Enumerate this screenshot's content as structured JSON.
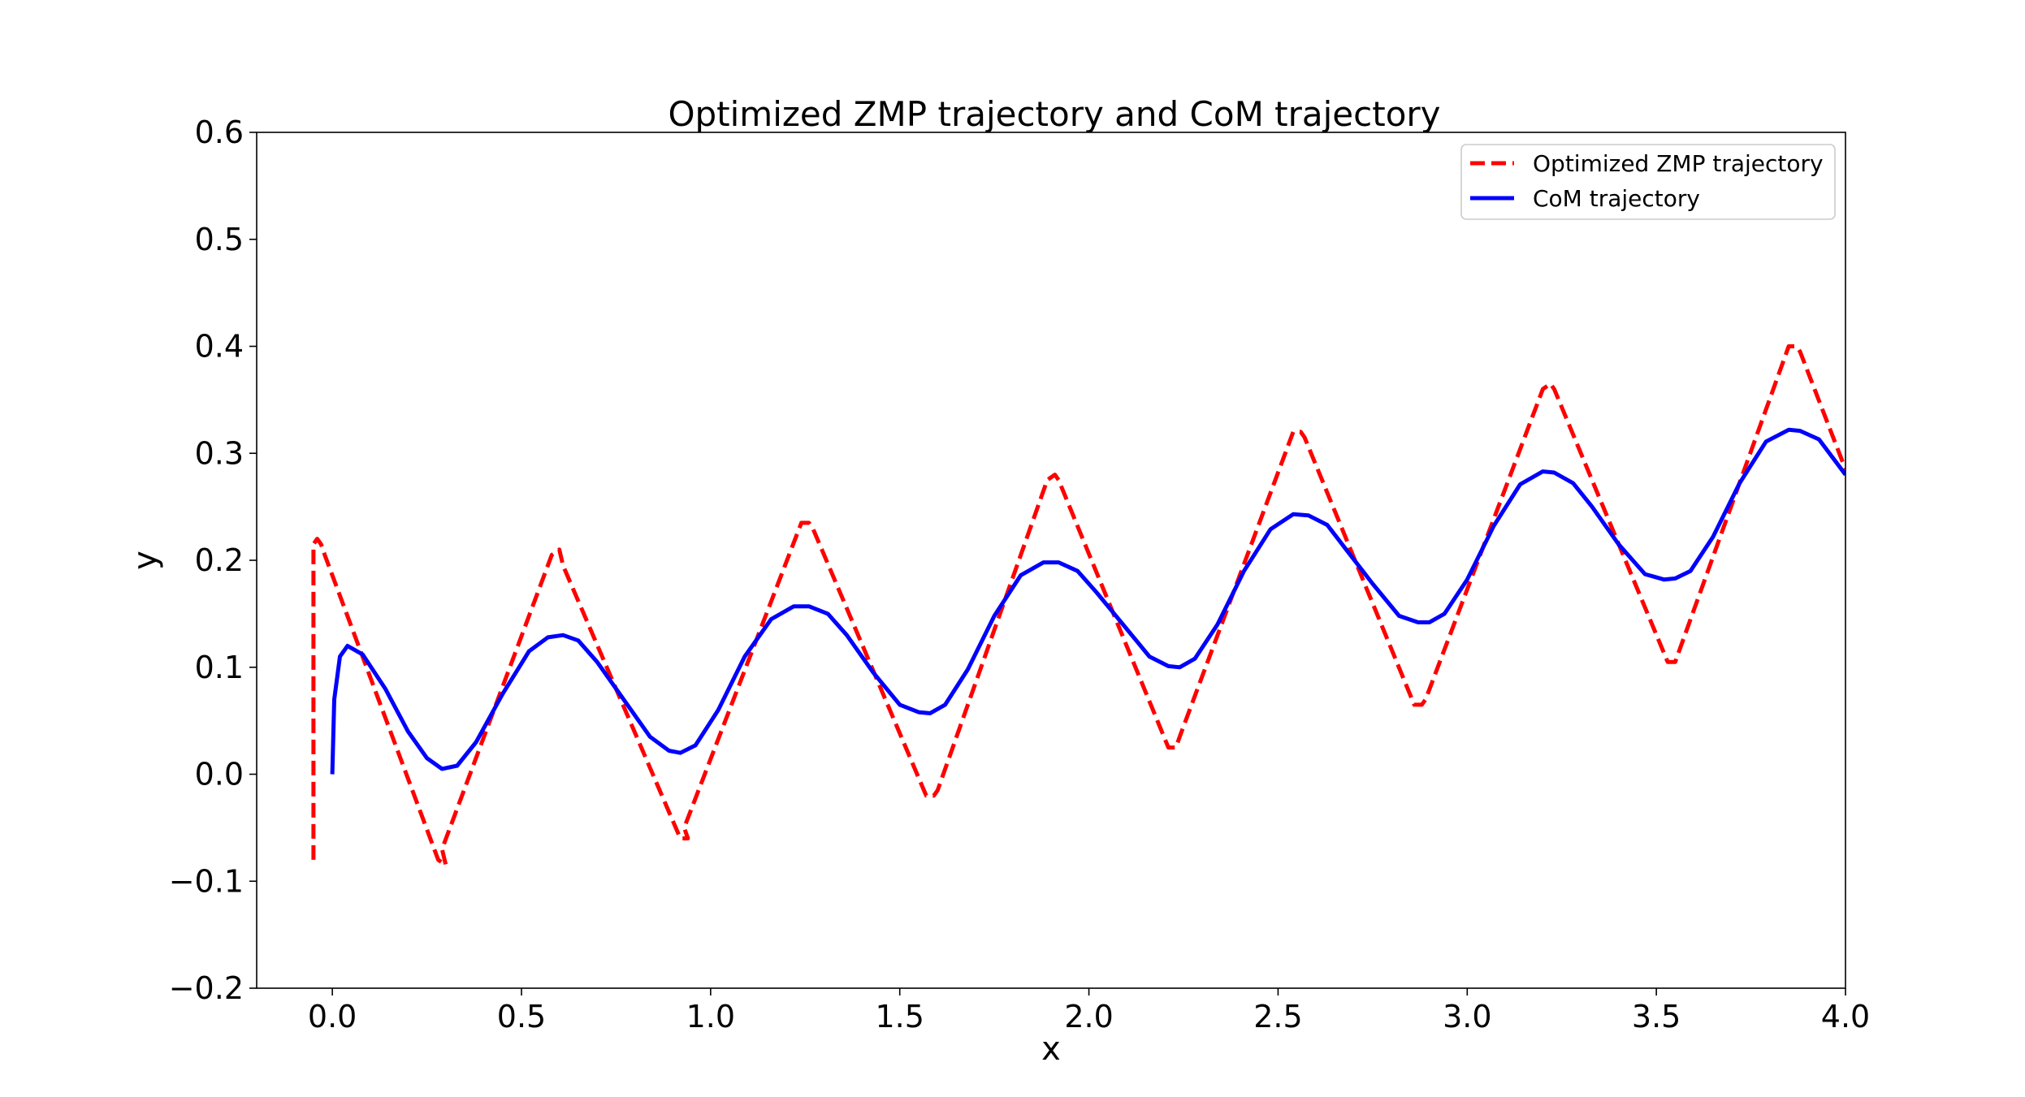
{
  "chart_data": {
    "type": "line",
    "title": "Optimized ZMP trajectory and CoM trajectory",
    "xlabel": "x",
    "ylabel": "y",
    "xlim": [
      -0.2,
      4.0
    ],
    "ylim": [
      -0.2,
      0.6
    ],
    "x_ticks": [
      0.0,
      0.5,
      1.0,
      1.5,
      2.0,
      2.5,
      3.0,
      3.5,
      4.0
    ],
    "y_ticks": [
      -0.2,
      -0.1,
      0.0,
      0.1,
      0.2,
      0.3,
      0.4,
      0.5,
      0.6
    ],
    "x_tick_labels": [
      "0.0",
      "0.5",
      "1.0",
      "1.5",
      "2.0",
      "2.5",
      "3.0",
      "3.5",
      "4.0"
    ],
    "y_tick_labels": [
      "−0.2",
      "−0.1",
      "0.0",
      "0.1",
      "0.2",
      "0.3",
      "0.4",
      "0.5",
      "0.6"
    ],
    "grid": false,
    "legend_position": "top-right",
    "series": [
      {
        "name": "Optimized ZMP trajectory",
        "color": "#ff0000",
        "style": "dashed",
        "x": [
          -0.05,
          -0.05,
          -0.04,
          -0.03,
          -0.02,
          0.28,
          0.3,
          0.29,
          0.58,
          0.6,
          0.61,
          0.92,
          0.94,
          0.93,
          1.24,
          1.26,
          1.27,
          1.57,
          1.59,
          1.6,
          1.89,
          1.91,
          1.92,
          2.21,
          2.23,
          2.24,
          2.54,
          2.56,
          2.57,
          2.86,
          2.88,
          2.89,
          3.2,
          3.22,
          3.23,
          3.53,
          3.55,
          3.56,
          3.85,
          3.87,
          3.88,
          4.0
        ],
        "y": [
          -0.08,
          0.215,
          0.22,
          0.215,
          0.205,
          -0.08,
          -0.085,
          -0.07,
          0.205,
          0.21,
          0.195,
          -0.06,
          -0.06,
          -0.05,
          0.235,
          0.235,
          0.23,
          -0.02,
          -0.02,
          -0.015,
          0.275,
          0.28,
          0.275,
          0.025,
          0.025,
          0.035,
          0.32,
          0.32,
          0.315,
          0.065,
          0.065,
          0.07,
          0.36,
          0.365,
          0.36,
          0.105,
          0.105,
          0.115,
          0.4,
          0.4,
          0.395,
          0.285
        ]
      },
      {
        "name": "CoM trajectory",
        "color": "#0000ff",
        "style": "solid",
        "x": [
          0.0,
          0.005,
          0.02,
          0.04,
          0.08,
          0.14,
          0.2,
          0.25,
          0.29,
          0.33,
          0.38,
          0.45,
          0.52,
          0.57,
          0.61,
          0.65,
          0.7,
          0.77,
          0.84,
          0.89,
          0.92,
          0.96,
          1.02,
          1.09,
          1.16,
          1.22,
          1.26,
          1.31,
          1.36,
          1.43,
          1.5,
          1.55,
          1.58,
          1.62,
          1.68,
          1.75,
          1.82,
          1.88,
          1.92,
          1.97,
          2.02,
          2.09,
          2.16,
          2.21,
          2.24,
          2.28,
          2.34,
          2.41,
          2.48,
          2.54,
          2.58,
          2.63,
          2.68,
          2.75,
          2.82,
          2.87,
          2.9,
          2.94,
          3.0,
          3.07,
          3.14,
          3.2,
          3.23,
          3.28,
          3.33,
          3.4,
          3.47,
          3.52,
          3.55,
          3.59,
          3.65,
          3.72,
          3.79,
          3.85,
          3.88,
          3.93,
          4.0
        ],
        "y": [
          0.0,
          0.07,
          0.11,
          0.12,
          0.112,
          0.08,
          0.04,
          0.015,
          0.005,
          0.008,
          0.03,
          0.075,
          0.115,
          0.128,
          0.13,
          0.125,
          0.105,
          0.07,
          0.035,
          0.022,
          0.02,
          0.027,
          0.06,
          0.11,
          0.145,
          0.157,
          0.157,
          0.15,
          0.13,
          0.095,
          0.065,
          0.058,
          0.057,
          0.065,
          0.098,
          0.148,
          0.186,
          0.198,
          0.198,
          0.19,
          0.17,
          0.14,
          0.11,
          0.101,
          0.1,
          0.108,
          0.14,
          0.19,
          0.229,
          0.243,
          0.242,
          0.233,
          0.21,
          0.178,
          0.148,
          0.142,
          0.142,
          0.15,
          0.182,
          0.232,
          0.271,
          0.283,
          0.282,
          0.272,
          0.25,
          0.215,
          0.187,
          0.182,
          0.183,
          0.19,
          0.222,
          0.272,
          0.311,
          0.322,
          0.321,
          0.313,
          0.28
        ]
      }
    ]
  }
}
